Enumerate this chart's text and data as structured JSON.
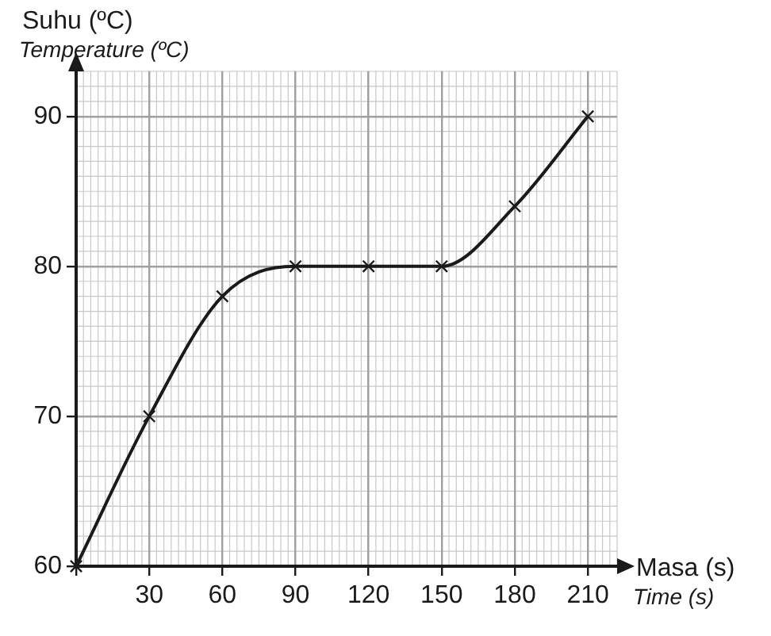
{
  "chart_data": {
    "type": "line",
    "xlabel": "Masa (s)\nTime (s)",
    "ylabel": "Suhu (ºC)\nTemperature (ºC)",
    "x": [
      0,
      30,
      60,
      90,
      120,
      150,
      180,
      210
    ],
    "series": [
      {
        "color": "#1a1a1a",
        "values": [
          60,
          70,
          78,
          80,
          80,
          80,
          84,
          90
        ]
      }
    ],
    "xlim": [
      0,
      222
    ],
    "xticks": [
      {
        "value": 0,
        "label": null
      },
      30,
      60,
      90,
      120,
      150,
      180,
      210
    ],
    "ylim": [
      60,
      93
    ],
    "yticks": [
      60,
      70,
      80,
      90
    ],
    "grid": true,
    "marker": "cross",
    "line_style": "solid",
    "legend": false
  }
}
